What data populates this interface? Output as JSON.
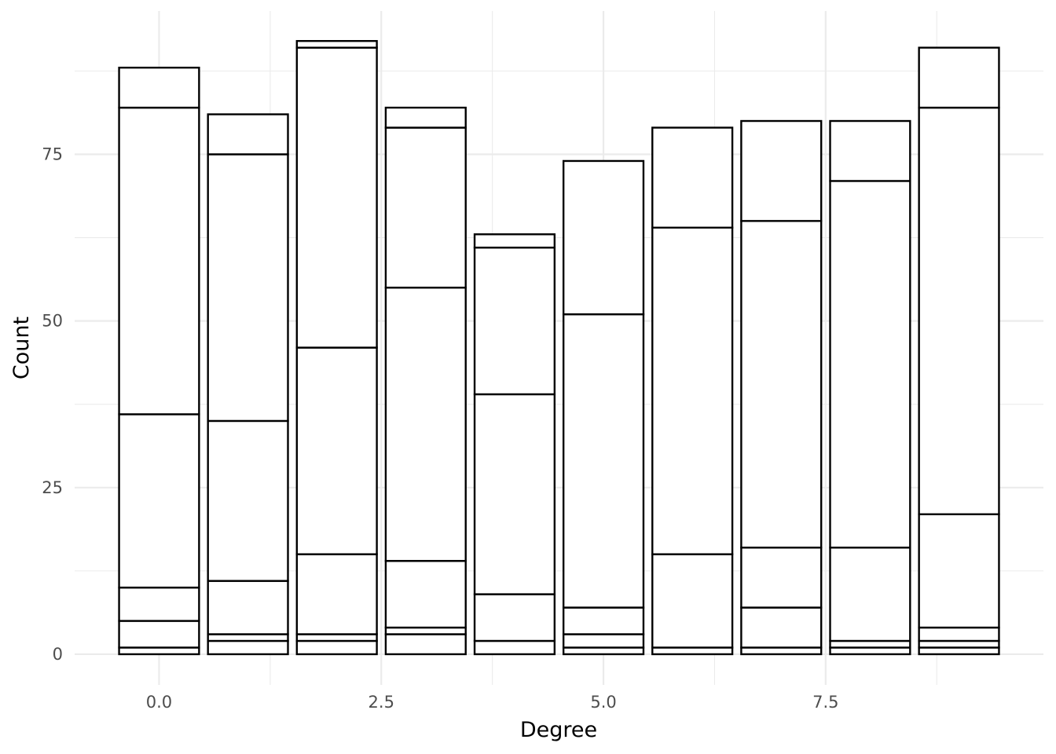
{
  "chart_data": {
    "type": "bar",
    "stacked": true,
    "xlabel": "Degree",
    "ylabel": "Count",
    "xlim": [
      -0.95,
      9.95
    ],
    "ylim": [
      -4.6,
      96.5
    ],
    "x_ticks": [
      0.0,
      2.5,
      5.0,
      7.5
    ],
    "x_tick_labels": [
      "0.0",
      "2.5",
      "5.0",
      "7.5"
    ],
    "y_ticks": [
      0,
      25,
      50,
      75
    ],
    "y_tick_labels": [
      "0",
      "25",
      "50",
      "75"
    ],
    "grid": true,
    "legend": "none",
    "bar_width": 0.9,
    "bar_fill": "#ffffff",
    "bar_outline": "#000000",
    "x": [
      0,
      1,
      2,
      3,
      4,
      5,
      6,
      7,
      8,
      9
    ],
    "segment_boundaries": [
      [
        0,
        1,
        5,
        10,
        36,
        82,
        88
      ],
      [
        0,
        2,
        3,
        11,
        35,
        75,
        81
      ],
      [
        0,
        2,
        3,
        15,
        46,
        91,
        92
      ],
      [
        0,
        3,
        4,
        14,
        55,
        79,
        82
      ],
      [
        0,
        2,
        9,
        39,
        61,
        63
      ],
      [
        0,
        1,
        3,
        7,
        51,
        74
      ],
      [
        0,
        1,
        15,
        64,
        79
      ],
      [
        0,
        1,
        7,
        16,
        65,
        80
      ],
      [
        0,
        1,
        2,
        16,
        71,
        80
      ],
      [
        0,
        1,
        2,
        4,
        21,
        82,
        91
      ]
    ],
    "totals": [
      88,
      81,
      92,
      82,
      63,
      74,
      79,
      80,
      80,
      91
    ]
  }
}
